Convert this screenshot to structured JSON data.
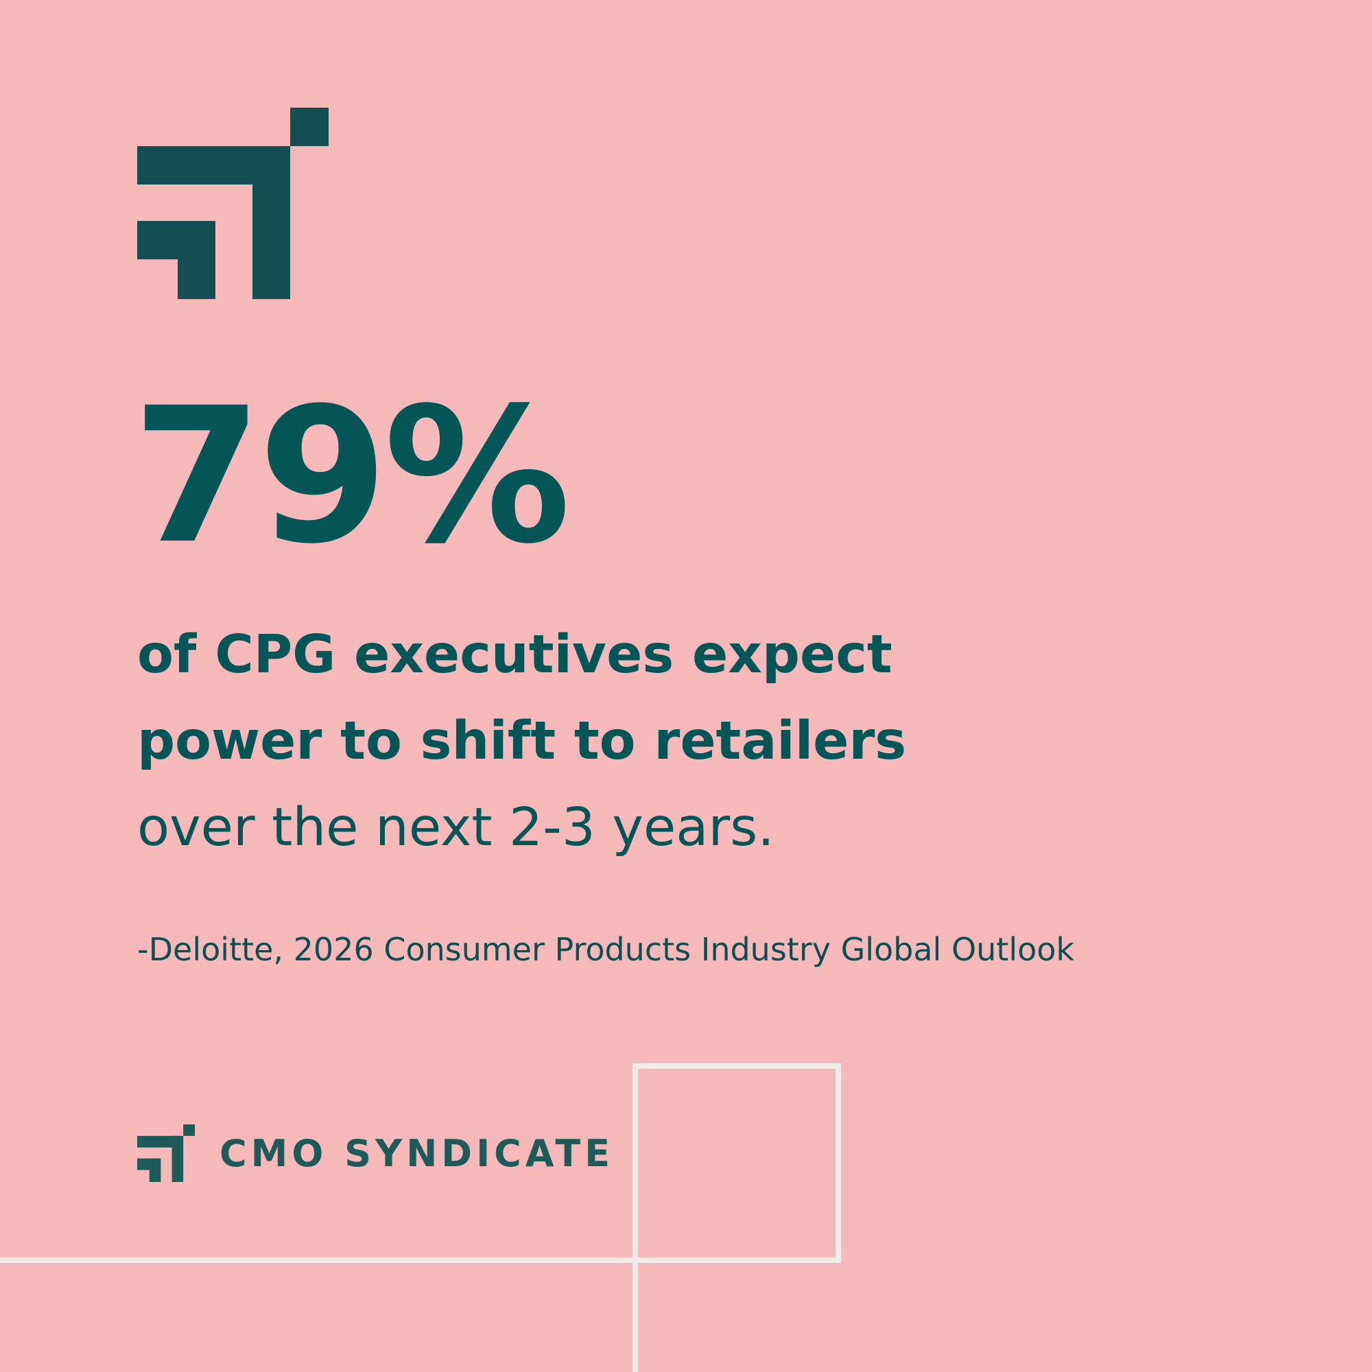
{
  "colors": {
    "background": "#f5b9bc",
    "primary": "#035655",
    "logo": "#154e52",
    "brand_text": "#1d5b58",
    "deco_lines": "#f1ecea"
  },
  "logo": {
    "icon": "cmo-syndicate-logo-mark"
  },
  "stat": {
    "value": "79%"
  },
  "statement": {
    "line1": "of CPG executives expect",
    "line2": "power to shift to retailers",
    "line3": "over the next 2-3 years."
  },
  "source": {
    "text": "-Deloitte, 2026 Consumer Products Industry Global Outlook"
  },
  "brand": {
    "name": "CMO SYNDICATE",
    "icon": "cmo-syndicate-logo-mark"
  }
}
